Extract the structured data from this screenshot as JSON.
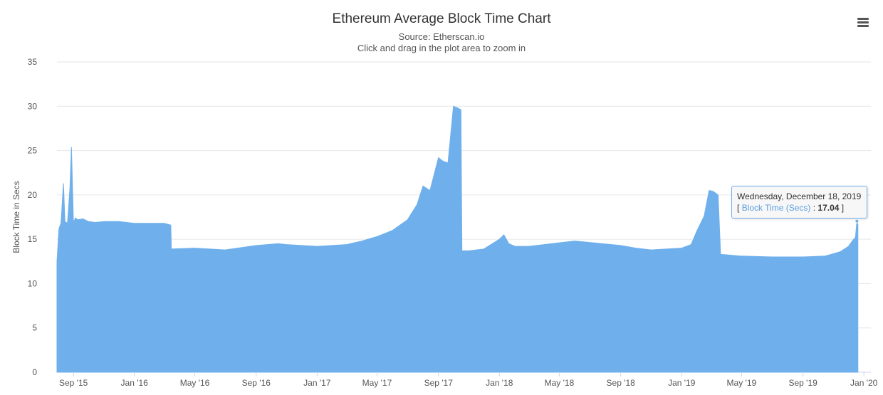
{
  "header": {
    "title": "Ethereum Average Block Time Chart",
    "subtitle_source": "Source: Etherscan.io",
    "subtitle_hint": "Click and drag in the plot area to zoom in"
  },
  "colors": {
    "series": "#6fb0ec",
    "grid": "#e6e6e6",
    "axis": "#ccd6eb",
    "tooltip_border": "#72b0eb"
  },
  "tooltip": {
    "date": "Wednesday, December 18, 2019",
    "open_bracket": "[",
    "series_name": "Block Time (Secs)",
    "separator": " : ",
    "value": "17.04",
    "close_bracket": "]"
  },
  "menu": {
    "icon": "hamburger-menu-icon"
  },
  "chart_data": {
    "type": "area",
    "title": "Ethereum Average Block Time Chart",
    "subtitle": "Source: Etherscan.io",
    "xlabel": "",
    "ylabel": "Block Time in Secs",
    "ylim": [
      0,
      35
    ],
    "yticks": [
      0,
      5,
      10,
      15,
      20,
      25,
      30,
      35
    ],
    "x_is_date": true,
    "xlim": [
      "2015-07-30",
      "2020-01-15"
    ],
    "xticks": [
      {
        "date": "2015-09-01",
        "label": "Sep '15"
      },
      {
        "date": "2016-01-01",
        "label": "Jan '16"
      },
      {
        "date": "2016-05-01",
        "label": "May '16"
      },
      {
        "date": "2016-09-01",
        "label": "Sep '16"
      },
      {
        "date": "2017-01-01",
        "label": "Jan '17"
      },
      {
        "date": "2017-05-01",
        "label": "May '17"
      },
      {
        "date": "2017-09-01",
        "label": "Sep '17"
      },
      {
        "date": "2018-01-01",
        "label": "Jan '18"
      },
      {
        "date": "2018-05-01",
        "label": "May '18"
      },
      {
        "date": "2018-09-01",
        "label": "Sep '18"
      },
      {
        "date": "2019-01-01",
        "label": "Jan '19"
      },
      {
        "date": "2019-05-01",
        "label": "May '19"
      },
      {
        "date": "2019-09-01",
        "label": "Sep '19"
      },
      {
        "date": "2020-01-01",
        "label": "Jan '20"
      }
    ],
    "grid": true,
    "legend": "none",
    "series": [
      {
        "name": "Block Time (Secs)",
        "x": [
          "2015-07-30",
          "2015-08-03",
          "2015-08-07",
          "2015-08-12",
          "2015-08-15",
          "2015-08-20",
          "2015-08-25",
          "2015-08-28",
          "2015-09-01",
          "2015-09-05",
          "2015-09-10",
          "2015-09-20",
          "2015-10-01",
          "2015-10-15",
          "2015-11-01",
          "2015-12-01",
          "2016-01-01",
          "2016-02-01",
          "2016-03-01",
          "2016-03-14",
          "2016-03-15",
          "2016-05-01",
          "2016-07-01",
          "2016-09-01",
          "2016-10-15",
          "2016-11-01",
          "2016-12-01",
          "2017-01-01",
          "2017-03-01",
          "2017-04-01",
          "2017-05-01",
          "2017-06-01",
          "2017-07-01",
          "2017-07-20",
          "2017-08-01",
          "2017-08-15",
          "2017-09-01",
          "2017-09-10",
          "2017-09-20",
          "2017-10-01",
          "2017-10-10",
          "2017-10-16",
          "2017-10-18",
          "2017-11-01",
          "2017-12-01",
          "2018-01-01",
          "2018-01-10",
          "2018-01-20",
          "2018-02-01",
          "2018-03-01",
          "2018-05-01",
          "2018-06-01",
          "2018-09-01",
          "2018-10-01",
          "2018-11-01",
          "2018-12-01",
          "2019-01-01",
          "2019-01-20",
          "2019-02-01",
          "2019-02-15",
          "2019-02-25",
          "2019-03-05",
          "2019-03-15",
          "2019-03-20",
          "2019-05-01",
          "2019-07-01",
          "2019-09-01",
          "2019-10-15",
          "2019-11-15",
          "2019-12-01",
          "2019-12-10",
          "2019-12-15",
          "2019-12-18",
          "2019-12-20"
        ],
        "values": [
          12.5,
          16.2,
          16.8,
          21.3,
          17.0,
          16.8,
          20.8,
          25.4,
          16.9,
          17.4,
          17.2,
          17.3,
          17.0,
          16.9,
          17.0,
          17.0,
          16.8,
          16.8,
          16.8,
          16.6,
          13.9,
          14.0,
          13.8,
          14.3,
          14.5,
          14.4,
          14.3,
          14.2,
          14.4,
          14.8,
          15.3,
          16.0,
          17.2,
          18.9,
          21.0,
          20.5,
          24.2,
          23.8,
          23.6,
          30.0,
          29.8,
          29.6,
          13.7,
          13.7,
          13.9,
          15.0,
          15.5,
          14.5,
          14.2,
          14.2,
          14.6,
          14.8,
          14.3,
          14.0,
          13.8,
          13.9,
          14.0,
          14.4,
          16.0,
          17.6,
          20.5,
          20.4,
          20.0,
          13.3,
          13.1,
          13.0,
          13.0,
          13.1,
          13.6,
          14.2,
          14.9,
          15.2,
          17.04,
          16.7
        ]
      }
    ]
  }
}
